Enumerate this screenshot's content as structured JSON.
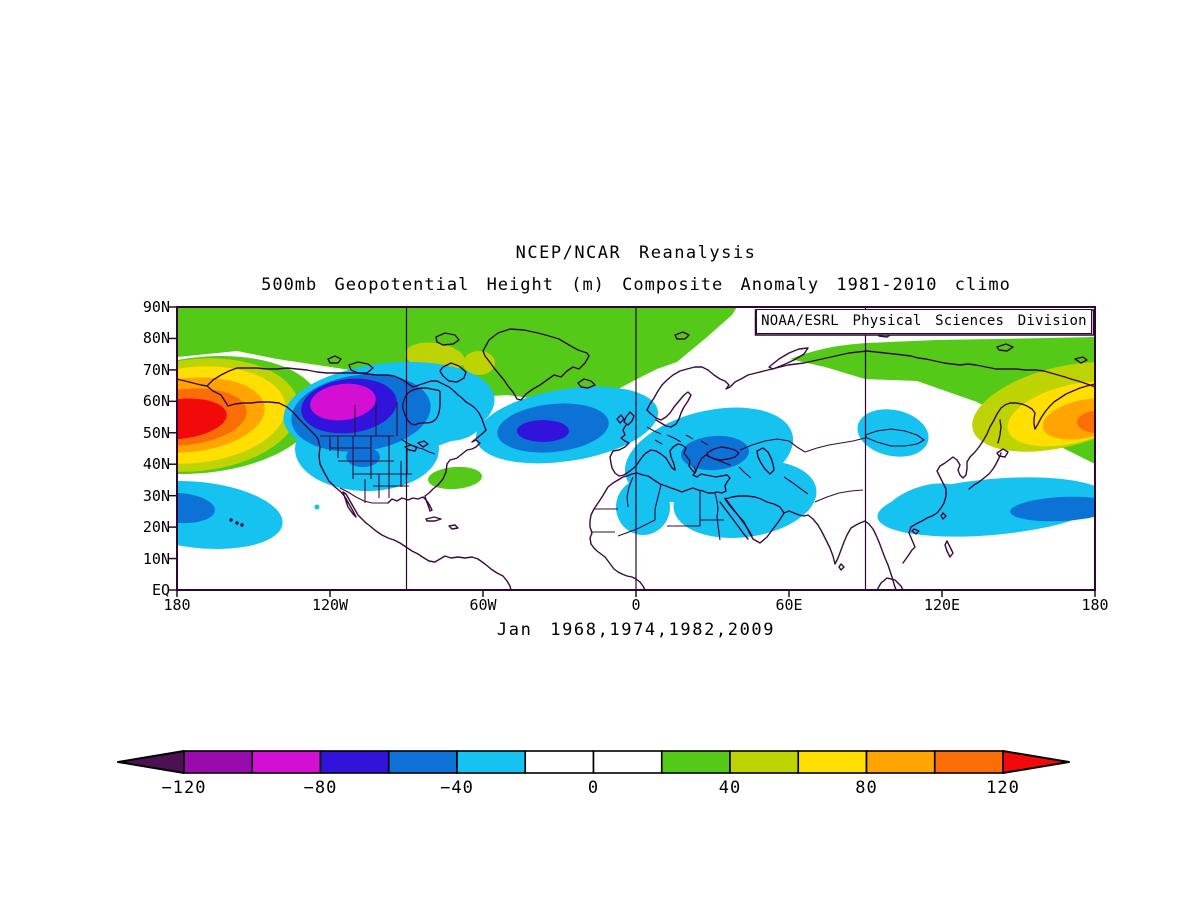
{
  "title": "NCEP/NCAR Reanalysis",
  "subtitle": "500mb Geopotential Height (m) Composite Anomaly 1981-2010 climo",
  "credit": "NOAA/ESRL Physical Sciences Division",
  "caption": "Jan 1968,1974,1982,2009",
  "map": {
    "lat_labels": [
      "90N",
      "80N",
      "70N",
      "60N",
      "50N",
      "40N",
      "30N",
      "20N",
      "10N",
      "EQ"
    ],
    "lon_labels": [
      "180",
      "120W",
      "60W",
      "0",
      "60E",
      "120E",
      "180"
    ]
  },
  "colorbar": {
    "labels": [
      "−120",
      "−80",
      "−40",
      "0",
      "40",
      "80",
      "120"
    ],
    "arrow_low_color": "#4b1152",
    "arrow_high_color": "#f20a0a",
    "segments": [
      {
        "min": -120,
        "max": -100,
        "color": "#9a0bad"
      },
      {
        "min": -100,
        "max": -80,
        "color": "#d40fd4"
      },
      {
        "min": -80,
        "max": -60,
        "color": "#3113dc"
      },
      {
        "min": -60,
        "max": -40,
        "color": "#0d72d6"
      },
      {
        "min": -40,
        "max": -20,
        "color": "#16c2ef"
      },
      {
        "min": -20,
        "max": 0,
        "color": "#ffffff"
      },
      {
        "min": 0,
        "max": 20,
        "color": "#ffffff"
      },
      {
        "min": 20,
        "max": 40,
        "color": "#54c918"
      },
      {
        "min": 40,
        "max": 60,
        "color": "#bdd303"
      },
      {
        "min": 60,
        "max": 80,
        "color": "#ffdf00"
      },
      {
        "min": 80,
        "max": 100,
        "color": "#ffa400"
      },
      {
        "min": 100,
        "max": 120,
        "color": "#fb6d06"
      }
    ]
  },
  "palette": {
    "darkpurple": "#4b1152",
    "purple": "#9a0bad",
    "magenta": "#d40fd4",
    "blueviolet": "#3113dc",
    "blue": "#0d72d6",
    "cyan": "#16c2ef",
    "white": "#ffffff",
    "green": "#54c918",
    "yellowgreen": "#bdd303",
    "yellow": "#ffdf00",
    "orange": "#ffa400",
    "darkorange": "#fb6d06",
    "red": "#f20a0a"
  },
  "colors": {
    "coastline": "#3a0a3e",
    "border_lines": "#3a0a3e",
    "frame": "#2d0631",
    "grid": "#2d0631",
    "text": "#000000",
    "background": "#ffffff"
  },
  "chart_data": {
    "type": "heatmap",
    "title": "NCEP/NCAR Reanalysis",
    "subtitle": "500mb Geopotential Height (m) Composite Anomaly 1981-2010 climo",
    "variable": "500mb geopotential height composite anomaly",
    "units": "m",
    "composite_months": "Jan 1968,1974,1982,2009",
    "climatology": "1981-2010",
    "credit": "NOAA/ESRL Physical Sciences Division",
    "lat_range": [
      "EQ",
      "90N"
    ],
    "lon_range": [
      "180W",
      "180E"
    ],
    "contour_interval": 20,
    "levels": [
      -120,
      -100,
      -80,
      -60,
      -40,
      -20,
      0,
      20,
      40,
      60,
      80,
      100,
      120
    ],
    "legend_position": "bottom",
    "anomaly_centers": [
      {
        "region": "North Pacific near dateline (Gulf of Alaska / Bering Sea)",
        "lon": "165W",
        "lat": "53N",
        "value_m": 120,
        "sign": "positive"
      },
      {
        "region": "Western Canada / Yukon",
        "lon": "113W",
        "lat": "57N",
        "value_m": -100,
        "sign": "negative"
      },
      {
        "region": "Central North Atlantic",
        "lon": "38W",
        "lat": "50N",
        "value_m": -70,
        "sign": "negative"
      },
      {
        "region": "Turkey / Black Sea / Caucasus",
        "lon": "35E",
        "lat": "43N",
        "value_m": -50,
        "sign": "negative"
      },
      {
        "region": "Mediterranean / North Africa / Middle East",
        "lon": "30E",
        "lat": "32N",
        "value_m": -30,
        "sign": "negative"
      },
      {
        "region": "Subtropical central Pacific",
        "lon": "172W",
        "lat": "26N",
        "value_m": -50,
        "sign": "negative"
      },
      {
        "region": "Western Pacific east of Japan",
        "lon": "170E",
        "lat": "28N",
        "value_m": -50,
        "sign": "negative"
      },
      {
        "region": "Kamchatka / NW Pacific",
        "lon": "170E",
        "lat": "55N",
        "value_m": 110,
        "sign": "positive"
      },
      {
        "region": "Arctic polar cap band 78-90N",
        "lon": "all",
        "lat": "85N",
        "value_m": 30,
        "sign": "positive"
      },
      {
        "region": "Mongolia / Lake Baikal",
        "lon": "100E",
        "lat": "50N",
        "value_m": -30,
        "sign": "negative"
      },
      {
        "region": "Offshore US East Coast",
        "lon": "72W",
        "lat": "36N",
        "value_m": 30,
        "sign": "positive"
      }
    ]
  }
}
